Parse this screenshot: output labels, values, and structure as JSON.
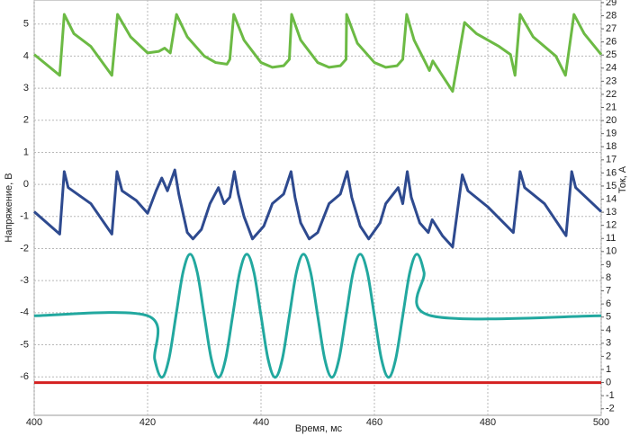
{
  "chart_data": {
    "type": "line",
    "xlabel": "Время, мс",
    "ylabel": "Напряжение, В",
    "y2label": "Ток, А",
    "xlim": [
      400,
      500
    ],
    "xticks": [
      400,
      420,
      440,
      460,
      480,
      500
    ],
    "ylim": [
      -7.2,
      5.75
    ],
    "yticks": [
      -6,
      -5,
      -4,
      -3,
      -2,
      -1,
      0,
      1,
      2,
      3,
      4,
      5
    ],
    "y2lim": [
      -2.5,
      29.2
    ],
    "y2ticks": [
      -2,
      -1,
      0,
      1,
      2,
      3,
      4,
      5,
      6,
      7,
      8,
      9,
      10,
      11,
      12,
      13,
      14,
      15,
      16,
      17,
      18,
      19,
      20,
      21,
      22,
      23,
      24,
      25,
      26,
      27,
      28,
      29
    ],
    "grid": true,
    "series": [
      {
        "color": "#6cba44",
        "x": [
          400,
          404.5,
          405.3,
          407,
          410,
          413.7,
          414.7,
          417,
          420,
          422,
          423,
          424,
          425.1,
          427,
          430,
          432,
          434,
          434.5,
          435.2,
          437,
          440,
          442,
          444,
          445,
          445.4,
          447,
          450,
          452,
          454,
          455,
          455.1,
          457,
          460,
          462,
          464,
          465,
          465.7,
          467,
          469,
          469.7,
          470.3,
          473.8,
          475.9,
          478,
          482,
          484,
          484.8,
          485.7,
          488,
          492,
          493.7,
          495.2,
          497,
          500
        ],
        "values": [
          4.05,
          3.4,
          5.3,
          4.7,
          4.3,
          3.4,
          5.3,
          4.6,
          4.1,
          4.15,
          4.25,
          4.1,
          5.3,
          4.6,
          4.0,
          3.8,
          3.75,
          3.9,
          5.3,
          4.5,
          3.8,
          3.65,
          3.7,
          3.9,
          5.3,
          4.5,
          3.8,
          3.65,
          3.7,
          3.9,
          5.3,
          4.4,
          3.8,
          3.65,
          3.7,
          3.9,
          5.3,
          4.5,
          3.8,
          3.55,
          3.85,
          2.9,
          5.05,
          4.7,
          4.3,
          4.05,
          3.4,
          5.3,
          4.6,
          4.0,
          3.4,
          5.3,
          4.7,
          4.05
        ]
      },
      {
        "color": "#2e4a8f",
        "x": [
          400,
          404.5,
          405.3,
          406,
          410,
          413.7,
          414.6,
          415.5,
          418,
          420,
          421.5,
          422.5,
          423.5,
          424.8,
          425.5,
          427,
          428,
          429.5,
          431,
          432.5,
          433.5,
          434.5,
          435.3,
          436,
          437,
          438.5,
          440.5,
          442,
          444,
          445.3,
          446,
          447,
          448.5,
          450,
          452,
          454,
          455.2,
          456,
          457.5,
          459,
          461,
          462,
          464.2,
          465,
          465.8,
          466.5,
          468,
          469.5,
          470.2,
          472,
          473.8,
          475.5,
          476.5,
          480,
          484.5,
          485.7,
          486.5,
          490,
          493.8,
          494.8,
          495.5,
          500
        ],
        "values": [
          -0.85,
          -1.55,
          0.4,
          -0.1,
          -0.6,
          -1.55,
          0.4,
          -0.2,
          -0.5,
          -0.9,
          -0.2,
          0.2,
          -0.2,
          0.45,
          -0.3,
          -1.5,
          -1.7,
          -1.4,
          -0.6,
          -0.1,
          -0.6,
          -0.4,
          0.4,
          -0.3,
          -1.0,
          -1.7,
          -1.3,
          -0.6,
          -0.3,
          0.4,
          -0.4,
          -1.2,
          -1.7,
          -1.5,
          -0.6,
          -0.3,
          0.4,
          -0.4,
          -1.3,
          -1.7,
          -1.2,
          -0.6,
          -0.1,
          -0.6,
          0.4,
          -0.4,
          -1.2,
          -1.5,
          -1.1,
          -1.6,
          -1.95,
          0.3,
          -0.2,
          -0.7,
          -1.5,
          0.4,
          -0.1,
          -0.6,
          -1.6,
          0.4,
          -0.1,
          -0.85
        ]
      },
      {
        "color": "#22a89f",
        "axis": "y2",
        "smooth": true,
        "x": [
          400,
          420,
          421.25,
          422.5,
          423.75,
          425,
          426.25,
          427.5,
          428.75,
          430,
          431.25,
          432.5,
          433.75,
          435,
          436.25,
          437.5,
          438.75,
          440,
          441.25,
          442.5,
          443.75,
          445,
          446.25,
          447.5,
          448.75,
          450,
          451.25,
          452.5,
          453.75,
          455,
          456.25,
          457.5,
          458.75,
          460,
          461.25,
          462.5,
          463.75,
          465,
          466.25,
          467.5,
          468.75,
          470,
          500
        ],
        "values": [
          5.1,
          5.1,
          1.78,
          0.4,
          1.78,
          5.1,
          8.42,
          9.8,
          8.42,
          5.1,
          1.78,
          0.4,
          1.78,
          5.1,
          8.42,
          9.8,
          8.42,
          5.1,
          1.78,
          0.4,
          1.78,
          5.1,
          8.42,
          9.8,
          8.42,
          5.1,
          1.78,
          0.4,
          1.78,
          5.1,
          8.42,
          9.8,
          8.42,
          5.1,
          1.78,
          0.4,
          1.78,
          5.1,
          8.42,
          9.8,
          8.42,
          5.1,
          5.1
        ]
      },
      {
        "color": "#d42020",
        "axis": "y2",
        "x": [
          400,
          500
        ],
        "values": [
          0,
          0
        ]
      }
    ]
  }
}
